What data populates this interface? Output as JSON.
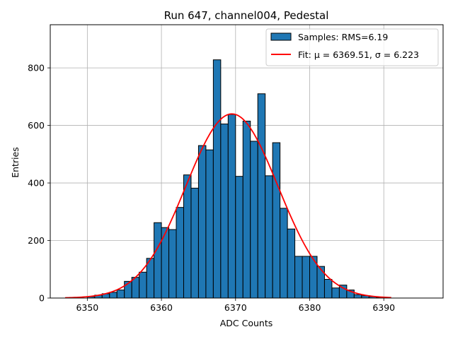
{
  "chart_data": {
    "type": "bar",
    "title": "Run 647, channel004, Pedestal",
    "xlabel": "ADC Counts",
    "ylabel": "Entries",
    "xlim": [
      6345,
      6398
    ],
    "ylim": [
      0,
      950
    ],
    "xticks": [
      6350,
      6360,
      6370,
      6380,
      6390
    ],
    "yticks": [
      0,
      200,
      400,
      600,
      800
    ],
    "grid": true,
    "legend_position": "top-right",
    "bin_width": 1,
    "histogram": {
      "name": "Samples: RMS=6.19",
      "color": "#1f77b4",
      "edgecolor": "#000000",
      "bin_starts": [
        6350,
        6351,
        6352,
        6353,
        6354,
        6355,
        6356,
        6357,
        6358,
        6359,
        6360,
        6361,
        6362,
        6363,
        6364,
        6365,
        6366,
        6367,
        6368,
        6369,
        6370,
        6371,
        6372,
        6373,
        6374,
        6375,
        6376,
        6377,
        6378,
        6379,
        6380,
        6381,
        6382,
        6383,
        6384,
        6385,
        6386,
        6387,
        6388,
        6389
      ],
      "counts": [
        5,
        10,
        15,
        20,
        28,
        58,
        72,
        90,
        138,
        262,
        245,
        238,
        315,
        428,
        382,
        530,
        515,
        828,
        605,
        638,
        423,
        615,
        545,
        710,
        425,
        540,
        312,
        240,
        145,
        145,
        145,
        110,
        65,
        35,
        45,
        28,
        12,
        8,
        5,
        2
      ]
    },
    "fit": {
      "name": "Fit: μ = 6369.51, σ = 6.223",
      "color": "#ff0000",
      "mu": 6369.51,
      "sigma": 6.223,
      "amplitude": 640,
      "x_range": [
        6347,
        6391
      ]
    }
  }
}
